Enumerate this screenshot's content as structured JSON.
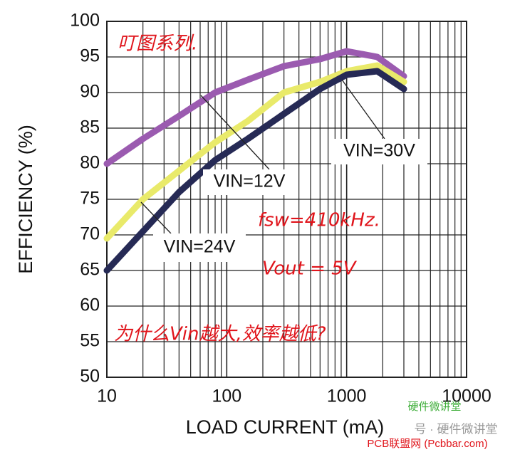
{
  "chart_data": {
    "type": "line",
    "x_label": "LOAD CURRENT (mA)",
    "y_label": "EFFICIENCY (%)",
    "x": [
      10,
      20,
      40,
      80,
      150,
      300,
      600,
      1000,
      1800,
      3000
    ],
    "series": [
      {
        "name": "VIN=12V",
        "color": "#9b5bb0",
        "values": [
          80,
          83.5,
          86.7,
          90,
          91.8,
          93.7,
          94.7,
          95.8,
          95,
          92.3
        ]
      },
      {
        "name": "VIN=24V",
        "color": "#e9ea6a",
        "values": [
          69.5,
          75,
          79,
          83,
          86,
          90,
          91.5,
          93,
          93.8,
          91.5
        ]
      },
      {
        "name": "VIN=30V",
        "color": "#262a55",
        "values": [
          65,
          70.5,
          76,
          80.5,
          83.5,
          87,
          90.5,
          92.5,
          93,
          90.5
        ]
      }
    ],
    "xscale": "log",
    "xlim": [
      10,
      10000
    ],
    "xticks": [
      10,
      100,
      1000,
      10000
    ],
    "ylim": [
      50,
      100
    ],
    "yticks": [
      50,
      55,
      60,
      65,
      70,
      75,
      80,
      85,
      90,
      95,
      100
    ],
    "grid": true,
    "minor_grid": true,
    "annotations": [
      "叮图系列.",
      "fsw=410kHz.",
      "Vout = 5V",
      "为什么Vin越大,效率越低?"
    ],
    "watermarks": [
      "硬件微讲堂",
      "号 · 硬件微讲堂",
      "PCB联盟网 (Pcbbar.com)"
    ]
  }
}
